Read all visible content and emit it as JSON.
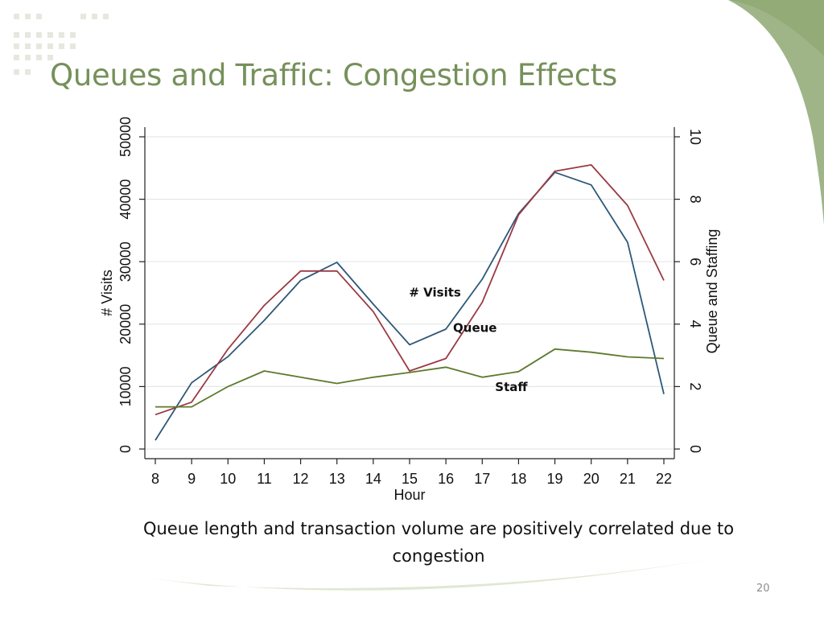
{
  "slide": {
    "title": "Queues and Traffic: Congestion Effects",
    "caption": "Queue length and transaction volume are positively correlated due to congestion",
    "page_number": "20",
    "accent_color": "#76905a"
  },
  "chart_data": {
    "type": "line",
    "title": "",
    "xlabel": "Hour",
    "ylabel": "# Visits",
    "y2label": "Queue and Staffing",
    "x": [
      8,
      9,
      10,
      11,
      12,
      13,
      14,
      15,
      16,
      17,
      18,
      19,
      20,
      21,
      22
    ],
    "x_ticks": [
      "8",
      "9",
      "10",
      "11",
      "12",
      "13",
      "14",
      "15",
      "16",
      "17",
      "18",
      "19",
      "20",
      "21",
      "22"
    ],
    "ylim": [
      0,
      50000
    ],
    "y_ticks": [
      "0",
      "10000",
      "20000",
      "30000",
      "40000",
      "50000"
    ],
    "y2lim": [
      0,
      10
    ],
    "y2_ticks": [
      "0",
      "2",
      "4",
      "6",
      "8",
      "10"
    ],
    "grid": true,
    "series": [
      {
        "name": "# Visits",
        "axis": "left",
        "color": "#2e5878",
        "values": [
          1400,
          10600,
          14800,
          20600,
          27000,
          29900,
          23200,
          16700,
          19200,
          27200,
          37700,
          44300,
          42300,
          33100,
          8800
        ]
      },
      {
        "name": "Queue",
        "axis": "right",
        "color": "#9b3a44",
        "values": [
          1.1,
          1.5,
          3.2,
          4.6,
          5.7,
          5.7,
          4.4,
          2.5,
          2.9,
          4.7,
          7.5,
          8.9,
          9.1,
          7.8,
          5.4
        ]
      },
      {
        "name": "Staff",
        "axis": "right",
        "color": "#5c7a2c",
        "values": [
          1.35,
          1.35,
          2.0,
          2.5,
          2.3,
          2.1,
          2.3,
          2.45,
          2.62,
          2.3,
          2.48,
          3.2,
          3.1,
          2.95,
          2.9
        ]
      }
    ],
    "annotations": [
      {
        "text": "# Visits",
        "x": 15.7,
        "y2": 4.88
      },
      {
        "text": "Queue",
        "x": 16.8,
        "y2": 3.75
      },
      {
        "text": "Staff",
        "x": 17.8,
        "y2": 1.85
      }
    ]
  }
}
